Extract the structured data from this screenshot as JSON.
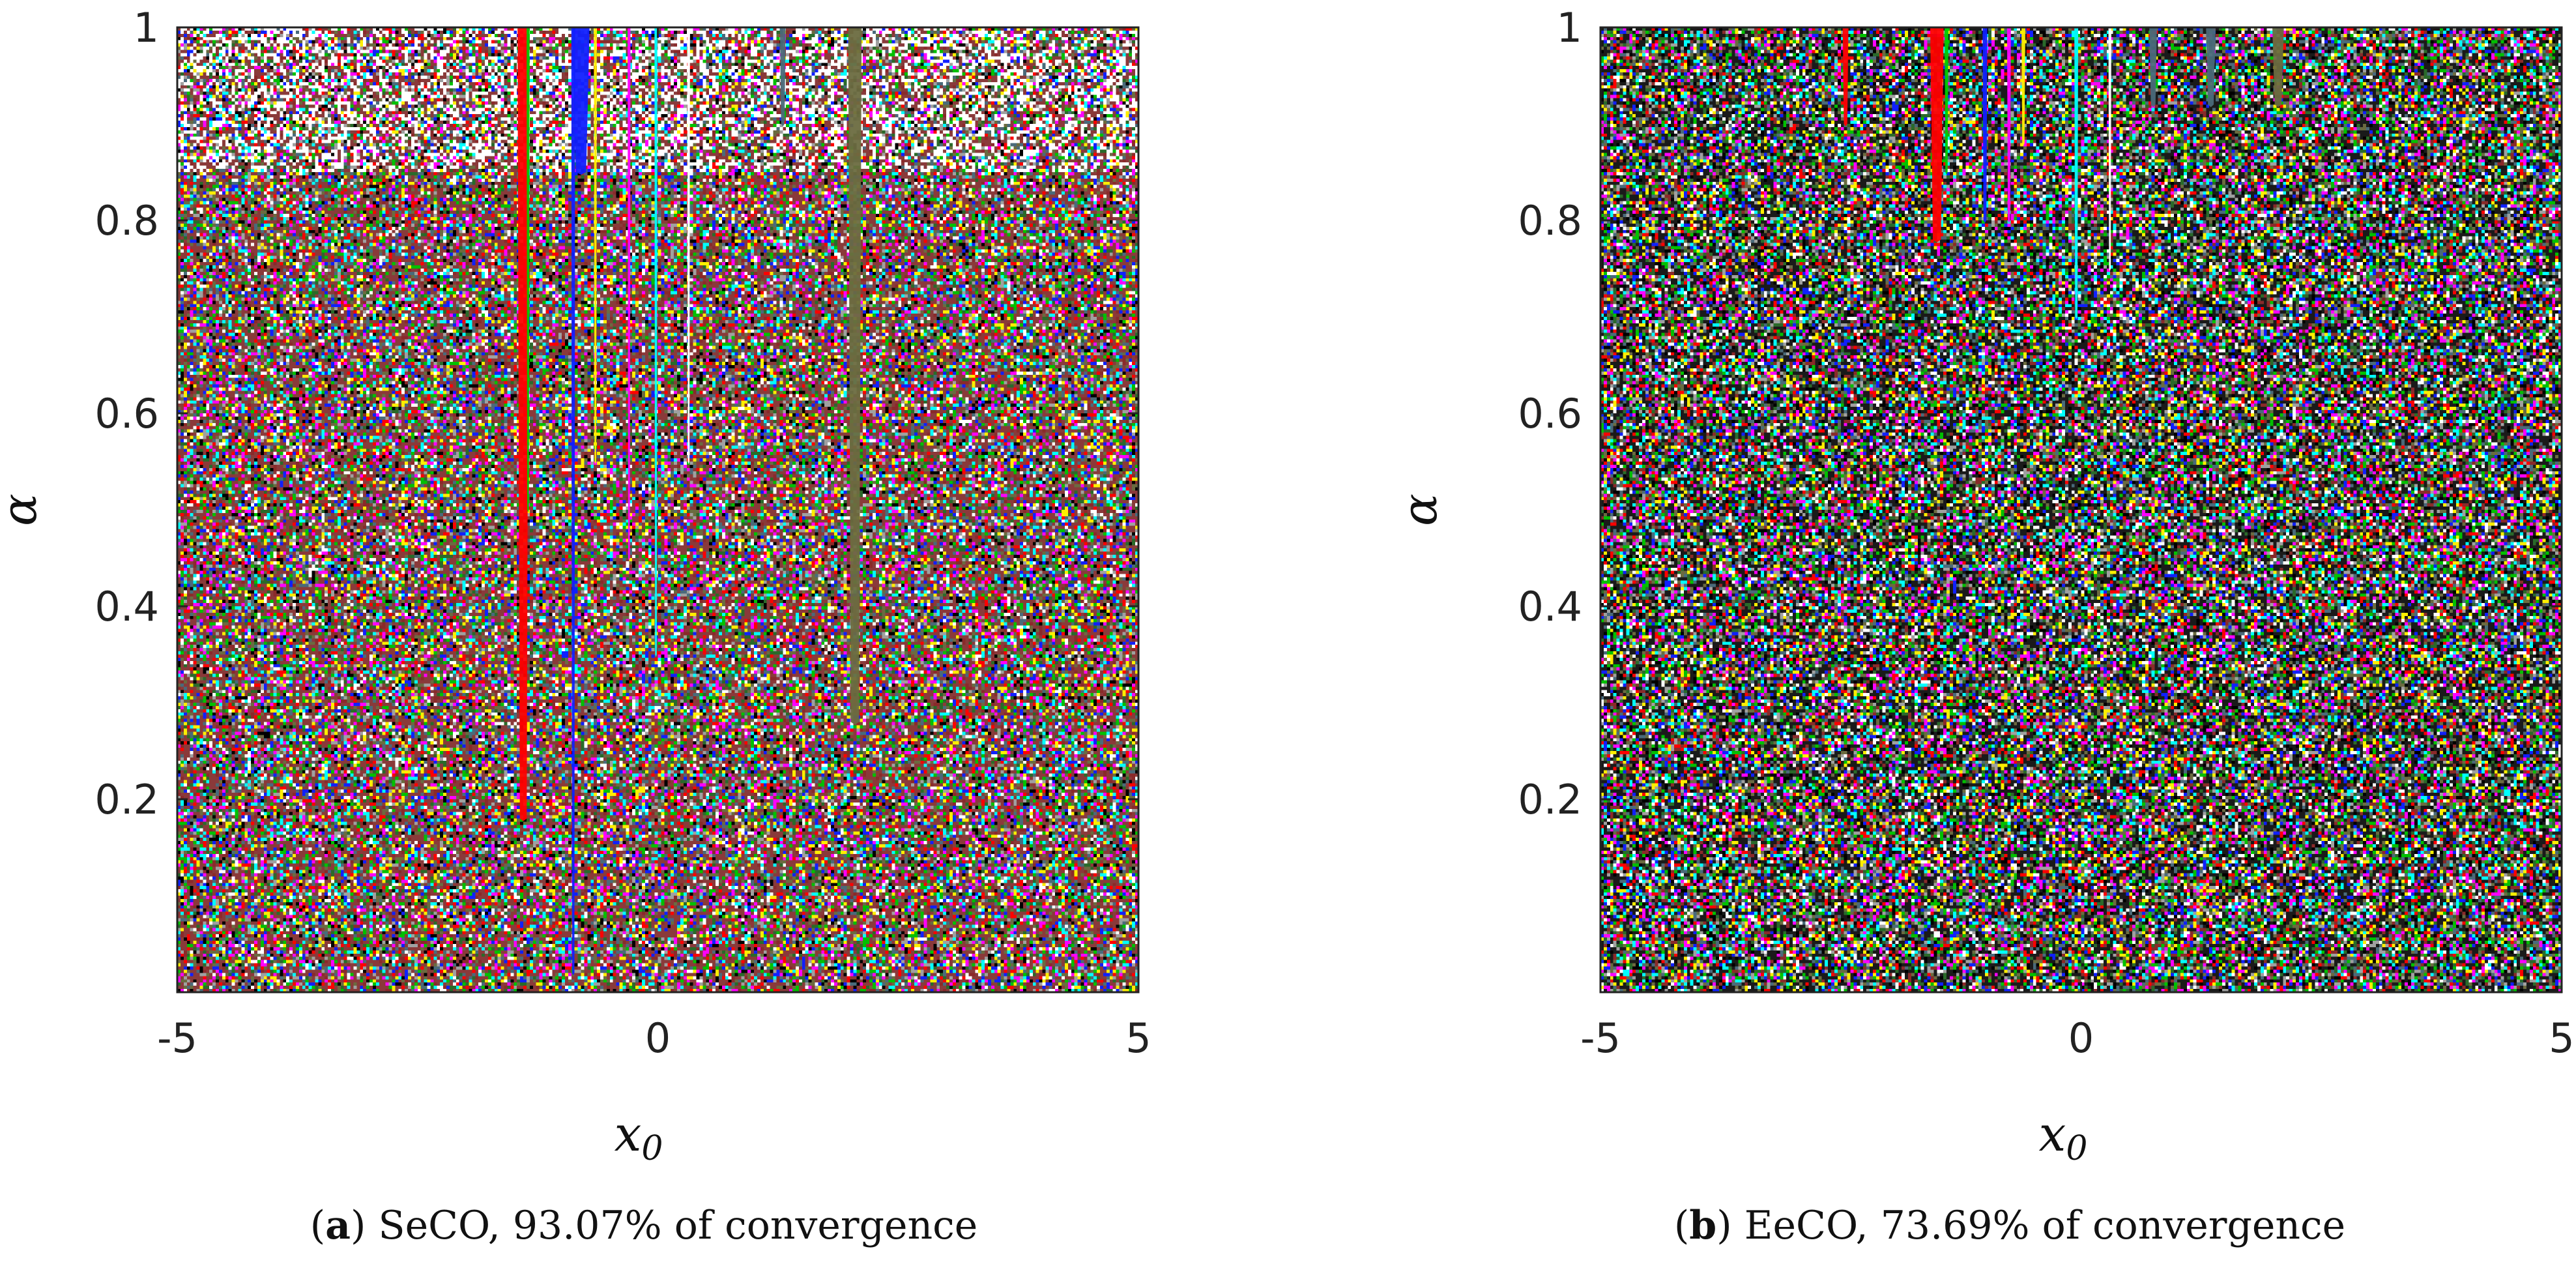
{
  "chart_data": [
    {
      "type": "heatmap",
      "panel_tag": "a",
      "caption_rest": " SeCO, 93.07% of convergence",
      "xlabel_main": "x",
      "xlabel_sub": "0",
      "ylabel": "α",
      "xlim": [
        -5,
        5
      ],
      "ylim": [
        0,
        1
      ],
      "x_ticks": [
        -5,
        0,
        5
      ],
      "x_tick_labels": [
        "-5",
        "0",
        "5"
      ],
      "y_ticks": [
        0.2,
        0.4,
        0.6,
        0.8,
        1
      ],
      "y_tick_labels": [
        "0.2",
        "0.4",
        "0.6",
        "0.8",
        "1"
      ],
      "background_bias": "#8a3a3a",
      "convergence_basins": [
        {
          "x": -1.4,
          "width": 0.12,
          "alpha_min": 0.18,
          "color": "#ff0000"
        },
        {
          "x": -1.35,
          "width": 0.03,
          "alpha_min": 0.5,
          "color": "#00cc00"
        },
        {
          "x": -0.88,
          "width": 0.04,
          "alpha_min": 0.02,
          "color": "#1020ff"
        },
        {
          "x": -0.8,
          "width": 0.18,
          "alpha_min": 0.85,
          "color": "#1020ff"
        },
        {
          "x": -0.65,
          "width": 0.03,
          "alpha_min": 0.55,
          "color": "#ffee00"
        },
        {
          "x": -0.3,
          "width": 0.03,
          "alpha_min": 0.45,
          "color": "#ff00ff"
        },
        {
          "x": -0.02,
          "width": 0.03,
          "alpha_min": 0.35,
          "color": "#00ffff"
        },
        {
          "x": 0.32,
          "width": 0.03,
          "alpha_min": 0.55,
          "color": "#ffffff"
        },
        {
          "x": 1.3,
          "width": 0.06,
          "alpha_min": 0.9,
          "color": "#4a6a7a"
        },
        {
          "x": 2.05,
          "width": 0.14,
          "alpha_min": 0.28,
          "color": "#6b6b40"
        }
      ]
    },
    {
      "type": "heatmap",
      "panel_tag": "b",
      "caption_rest": " EeCO, 73.69% of convergence",
      "xlabel_main": "x",
      "xlabel_sub": "0",
      "ylabel": "α",
      "xlim": [
        -5,
        5
      ],
      "ylim": [
        0,
        1
      ],
      "x_ticks": [
        -5,
        0,
        5
      ],
      "x_tick_labels": [
        "-5",
        "0",
        "5"
      ],
      "y_ticks": [
        0.2,
        0.4,
        0.6,
        0.8,
        1
      ],
      "y_tick_labels": [
        "0.2",
        "0.4",
        "0.6",
        "0.8",
        "1"
      ],
      "background_bias": "#1a1a1a",
      "convergence_basins": [
        {
          "x": -2.45,
          "width": 0.06,
          "alpha_min": 0.9,
          "color": "#ff0000"
        },
        {
          "x": -1.5,
          "width": 0.14,
          "alpha_min": 0.78,
          "color": "#ff0000"
        },
        {
          "x": -1.4,
          "width": 0.04,
          "alpha_min": 0.85,
          "color": "#00cc00"
        },
        {
          "x": -1.0,
          "width": 0.05,
          "alpha_min": 0.8,
          "color": "#1020ff"
        },
        {
          "x": -0.75,
          "width": 0.04,
          "alpha_min": 0.8,
          "color": "#ff00ff"
        },
        {
          "x": -0.6,
          "width": 0.04,
          "alpha_min": 0.88,
          "color": "#ffee00"
        },
        {
          "x": -0.05,
          "width": 0.04,
          "alpha_min": 0.7,
          "color": "#00ffff"
        },
        {
          "x": 0.3,
          "width": 0.03,
          "alpha_min": 0.75,
          "color": "#ffffff"
        },
        {
          "x": 0.75,
          "width": 0.08,
          "alpha_min": 0.92,
          "color": "#4a6a7a"
        },
        {
          "x": 1.35,
          "width": 0.1,
          "alpha_min": 0.92,
          "color": "#4a6a7a"
        },
        {
          "x": 2.05,
          "width": 0.12,
          "alpha_min": 0.92,
          "color": "#6b6b40"
        }
      ]
    }
  ]
}
